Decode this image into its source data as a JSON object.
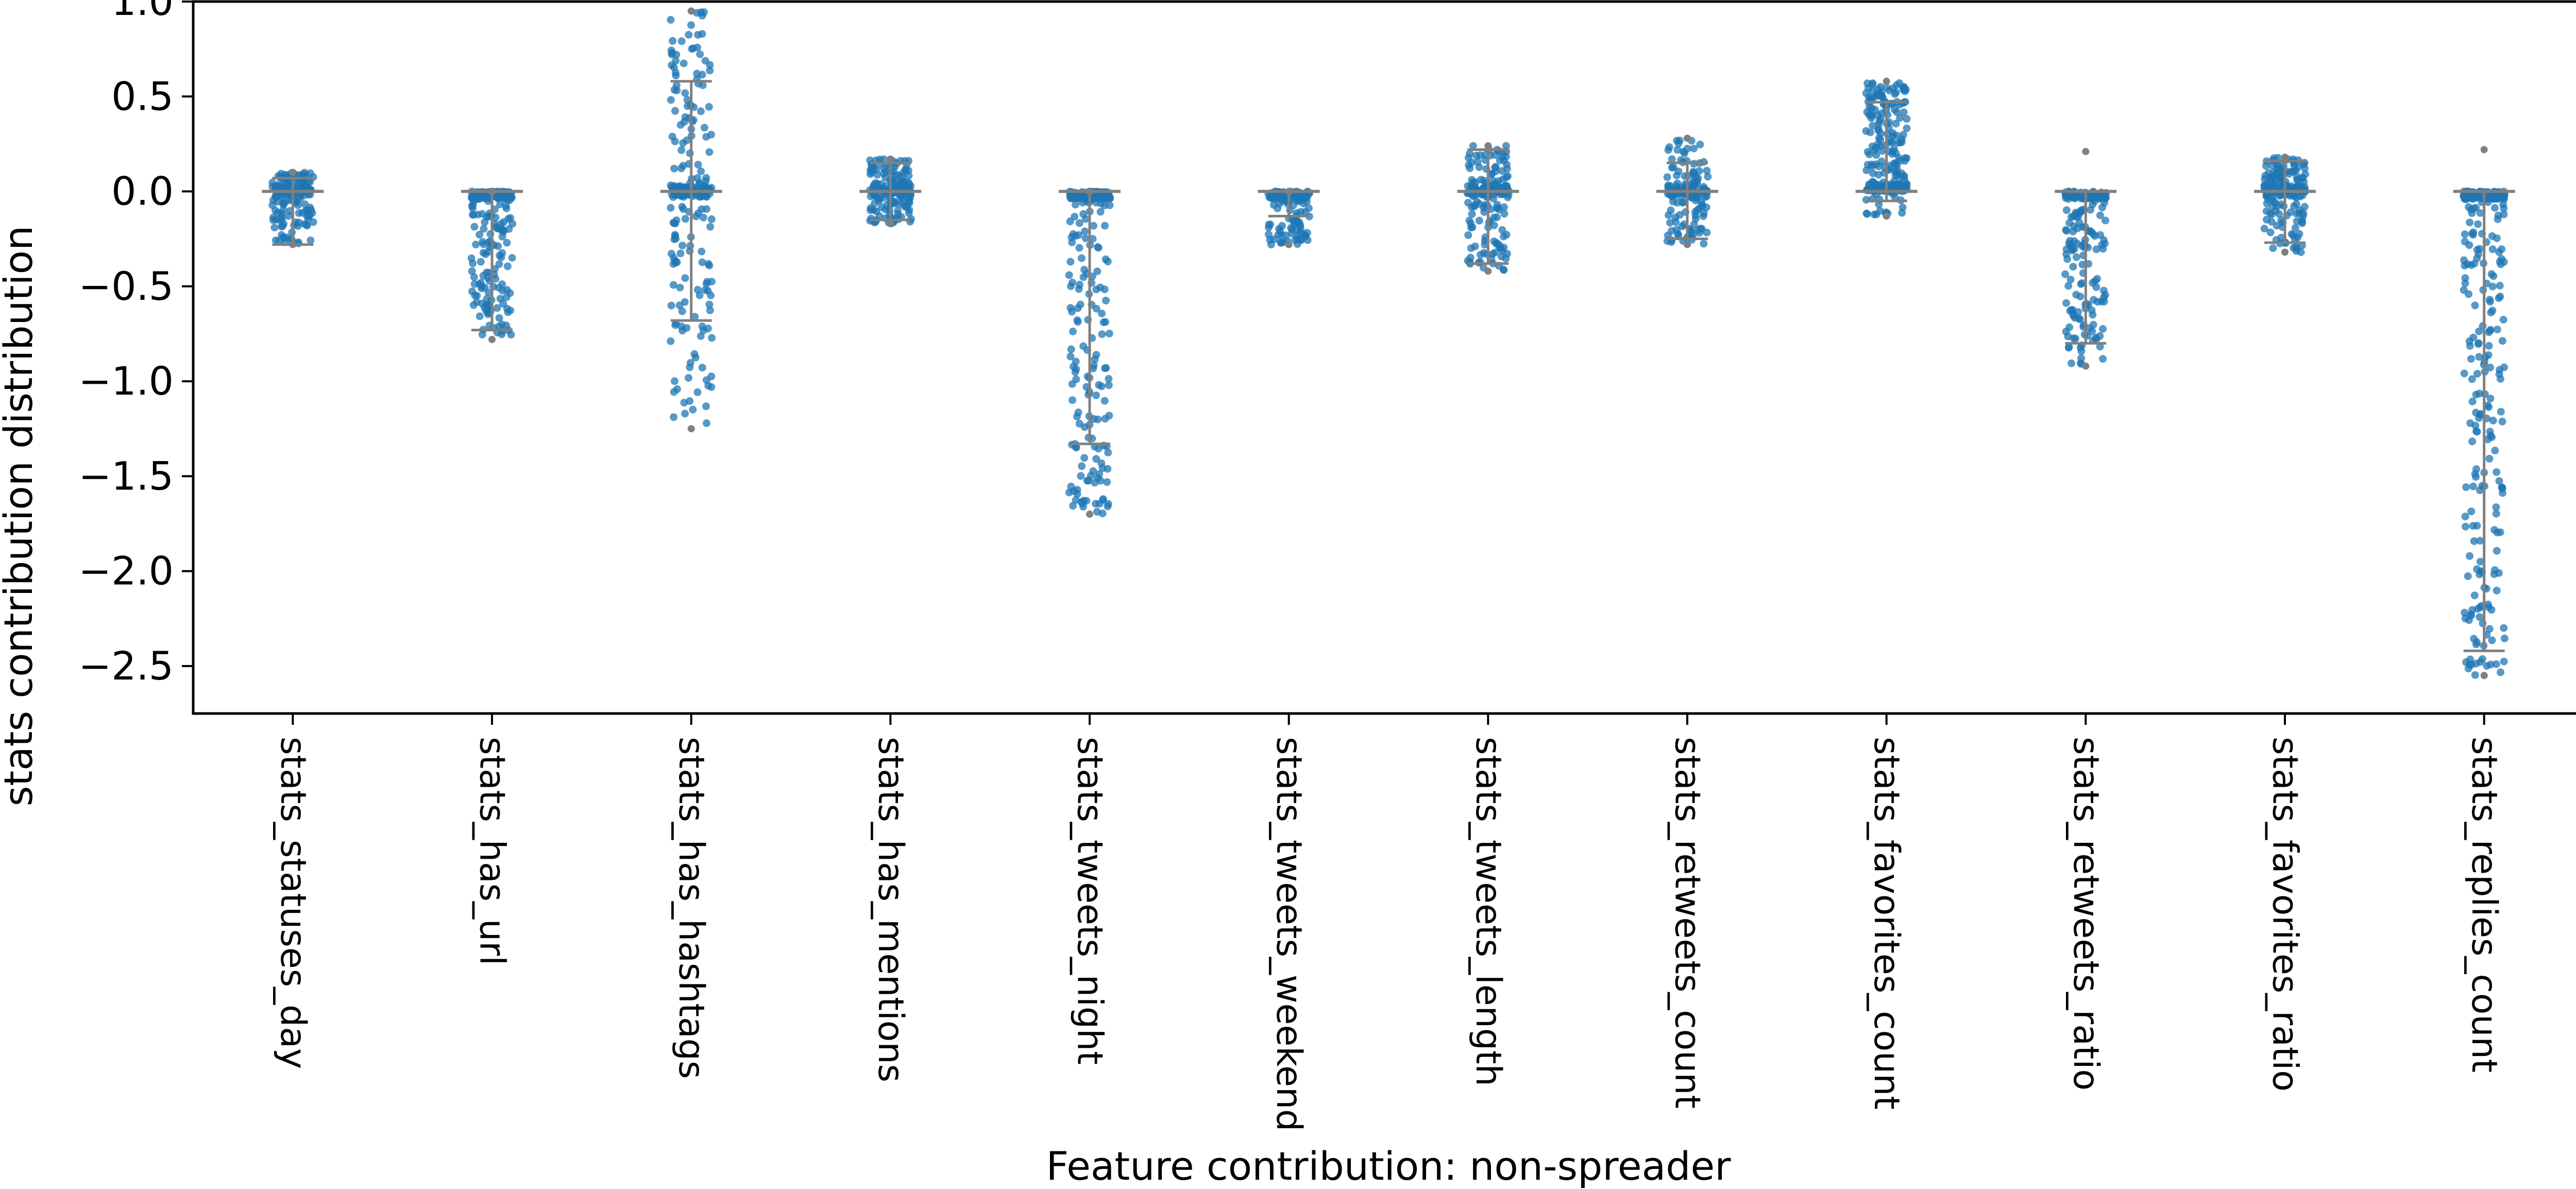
{
  "chart_data": {
    "type": "strip",
    "xlabel": "Feature contribution: non-spreader",
    "ylabel": "stats contribution distribution",
    "ylim": [
      -2.75,
      1.0
    ],
    "yticks": [
      1.0,
      0.5,
      0.0,
      -0.5,
      -1.0,
      -1.5,
      -2.0,
      -2.5
    ],
    "ytick_labels": [
      "1.0",
      "0.5",
      "0.0",
      "−0.5",
      "−1.0",
      "−1.5",
      "−2.0",
      "−2.5"
    ],
    "categories": [
      "stats_statuses_day",
      "stats_has_url",
      "stats_has_hashtags",
      "stats_has_mentions",
      "stats_tweets_night",
      "stats_tweets_weekend",
      "stats_tweets_length",
      "stats_retweets_count",
      "stats_favorites_count",
      "stats_retweets_ratio",
      "stats_favorites_ratio",
      "stats_replies_count"
    ],
    "distributions": [
      {
        "min": -0.28,
        "max": 0.1,
        "median": 0.0,
        "whisker_low": -0.28,
        "whisker_high": 0.07,
        "n": 200,
        "mode": "sym"
      },
      {
        "min": -0.78,
        "max": 0.0,
        "median": 0.0,
        "whisker_low": -0.73,
        "whisker_high": 0.0,
        "n": 220,
        "mode": "neg"
      },
      {
        "min": -1.25,
        "max": 0.95,
        "median": 0.0,
        "whisker_low": -0.68,
        "whisker_high": 0.58,
        "n": 240,
        "mode": "sym"
      },
      {
        "min": -0.17,
        "max": 0.17,
        "median": 0.0,
        "whisker_low": -0.15,
        "whisker_high": 0.15,
        "n": 180,
        "mode": "sym"
      },
      {
        "min": -1.7,
        "max": 0.0,
        "median": 0.0,
        "whisker_low": -1.33,
        "whisker_high": 0.0,
        "n": 260,
        "mode": "neg"
      },
      {
        "min": -0.28,
        "max": 0.0,
        "median": 0.0,
        "whisker_low": -0.13,
        "whisker_high": 0.0,
        "n": 140,
        "mode": "neg"
      },
      {
        "min": -0.42,
        "max": 0.24,
        "median": 0.0,
        "whisker_low": -0.38,
        "whisker_high": 0.22,
        "n": 200,
        "mode": "sym"
      },
      {
        "min": -0.28,
        "max": 0.28,
        "median": 0.0,
        "whisker_low": -0.25,
        "whisker_high": 0.15,
        "n": 170,
        "mode": "sym"
      },
      {
        "min": -0.13,
        "max": 0.58,
        "median": 0.0,
        "whisker_low": -0.05,
        "whisker_high": 0.47,
        "n": 240,
        "mode": "pos"
      },
      {
        "min": -0.92,
        "max": 0.21,
        "median": 0.0,
        "whisker_low": -0.8,
        "whisker_high": 0.0,
        "n": 220,
        "mode": "neg"
      },
      {
        "min": -0.32,
        "max": 0.18,
        "median": 0.0,
        "whisker_low": -0.27,
        "whisker_high": 0.16,
        "n": 200,
        "mode": "sym"
      },
      {
        "min": -2.55,
        "max": 0.22,
        "median": 0.0,
        "whisker_low": -2.42,
        "whisker_high": 0.0,
        "n": 320,
        "mode": "neg"
      }
    ],
    "grid": false,
    "point_color": "#1f77b4",
    "box_color": "#808080"
  }
}
